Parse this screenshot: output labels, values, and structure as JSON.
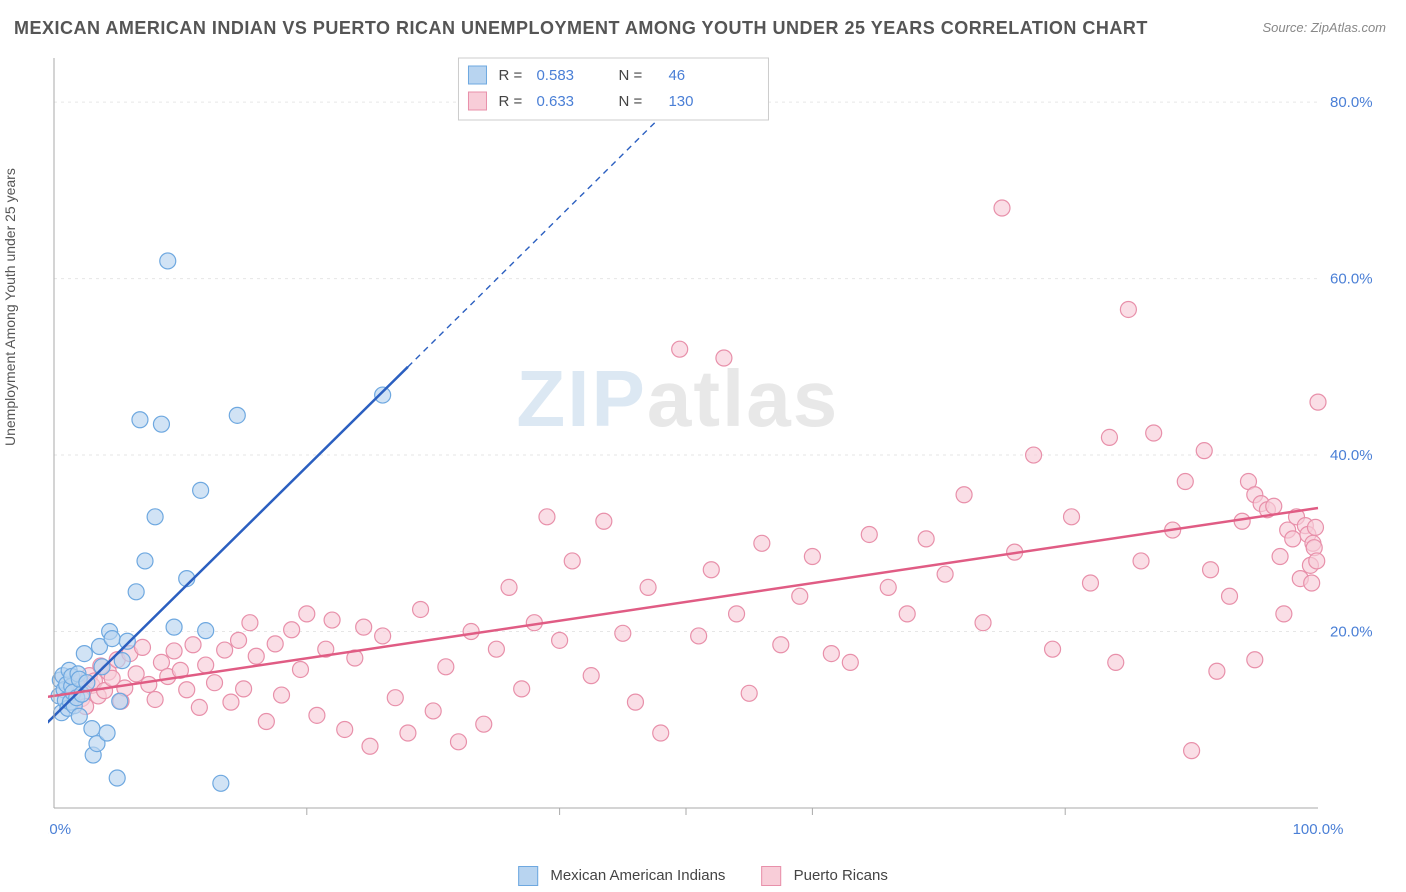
{
  "title": "MEXICAN AMERICAN INDIAN VS PUERTO RICAN UNEMPLOYMENT AMONG YOUTH UNDER 25 YEARS CORRELATION CHART",
  "source": "Source: ZipAtlas.com",
  "ylabel": "Unemployment Among Youth under 25 years",
  "watermark": {
    "zip": "ZIP",
    "atlas": "atlas"
  },
  "chart": {
    "type": "scatter",
    "background_color": "#ffffff",
    "grid_color": "#e6e6e6",
    "axis_color": "#aaaaaa",
    "tick_label_color": "#4a7fd6",
    "xlim": [
      0,
      100
    ],
    "ylim": [
      0,
      85
    ],
    "xtick_labels": [
      "0.0%",
      "100.0%"
    ],
    "xtick_positions": [
      0,
      100
    ],
    "x_minor_ticks": [
      20,
      40,
      50,
      60,
      80
    ],
    "ytick_labels": [
      "20.0%",
      "40.0%",
      "60.0%",
      "80.0%"
    ],
    "ytick_positions": [
      20,
      40,
      60,
      80
    ],
    "marker_radius": 8,
    "marker_stroke_width": 1.2,
    "trend_line_width": 2.5,
    "dashed_pattern": "6,5",
    "label_fontsize": 15,
    "title_fontsize": 18
  },
  "legend_box": {
    "rows": [
      {
        "swatch_fill": "#b8d4f0",
        "swatch_stroke": "#6ea8e0",
        "r_label": "R =",
        "r_val": "0.583",
        "n_label": "N =",
        "n_val": "46"
      },
      {
        "swatch_fill": "#f8cdd8",
        "swatch_stroke": "#e890aa",
        "r_label": "R =",
        "r_val": "0.633",
        "n_label": "N =",
        "n_val": "130"
      }
    ]
  },
  "bottom_legend": {
    "items": [
      {
        "label": "Mexican American Indians",
        "fill": "#b8d4f0",
        "stroke": "#6ea8e0"
      },
      {
        "label": "Puerto Ricans",
        "fill": "#f8cdd8",
        "stroke": "#e890aa"
      }
    ]
  },
  "series": [
    {
      "name": "Mexican American Indians",
      "color_fill": "#b8d4f0",
      "color_stroke": "#6ea8e0",
      "trend_color": "#2b5fc0",
      "trend": {
        "x1": -1,
        "y1": 9,
        "x2": 28,
        "y2": 50
      },
      "trend_dashed": {
        "x1": 28,
        "y1": 50,
        "x2": 52,
        "y2": 84
      },
      "points": [
        [
          0.4,
          12.7
        ],
        [
          0.5,
          14.5
        ],
        [
          0.6,
          10.8
        ],
        [
          0.7,
          15.0
        ],
        [
          0.8,
          13.4
        ],
        [
          0.9,
          12.2
        ],
        [
          1.0,
          14.0
        ],
        [
          1.1,
          11.3
        ],
        [
          1.2,
          15.6
        ],
        [
          1.3,
          12.0
        ],
        [
          1.4,
          13.8
        ],
        [
          1.4,
          14.9
        ],
        [
          1.5,
          13.1
        ],
        [
          1.6,
          11.6
        ],
        [
          1.8,
          12.5
        ],
        [
          1.9,
          15.2
        ],
        [
          2.0,
          10.4
        ],
        [
          2.0,
          14.6
        ],
        [
          2.2,
          12.9
        ],
        [
          2.4,
          17.5
        ],
        [
          2.6,
          14.2
        ],
        [
          3.0,
          9.0
        ],
        [
          3.1,
          6.0
        ],
        [
          3.4,
          7.3
        ],
        [
          3.6,
          18.3
        ],
        [
          3.8,
          16.0
        ],
        [
          4.2,
          8.5
        ],
        [
          4.4,
          20.0
        ],
        [
          4.6,
          19.2
        ],
        [
          5.0,
          3.4
        ],
        [
          5.2,
          12.1
        ],
        [
          5.4,
          16.7
        ],
        [
          5.8,
          18.9
        ],
        [
          6.5,
          24.5
        ],
        [
          6.8,
          44.0
        ],
        [
          7.2,
          28.0
        ],
        [
          8.0,
          33.0
        ],
        [
          8.5,
          43.5
        ],
        [
          9.0,
          62.0
        ],
        [
          9.5,
          20.5
        ],
        [
          10.5,
          26.0
        ],
        [
          11.6,
          36.0
        ],
        [
          12.0,
          20.1
        ],
        [
          13.2,
          2.8
        ],
        [
          14.5,
          44.5
        ],
        [
          26.0,
          46.8
        ]
      ]
    },
    {
      "name": "Puerto Ricans",
      "color_fill": "#f8cdd8",
      "color_stroke": "#e890aa",
      "trend_color": "#e05c84",
      "trend": {
        "x1": -1,
        "y1": 12.5,
        "x2": 100,
        "y2": 34.0
      },
      "trend_dashed": null,
      "points": [
        [
          1.5,
          13.0
        ],
        [
          1.8,
          14.2
        ],
        [
          2.0,
          13.8
        ],
        [
          2.2,
          12.4
        ],
        [
          2.5,
          11.5
        ],
        [
          2.8,
          15.0
        ],
        [
          3.0,
          13.9
        ],
        [
          3.2,
          14.4
        ],
        [
          3.5,
          12.7
        ],
        [
          3.7,
          16.1
        ],
        [
          4.0,
          13.3
        ],
        [
          4.3,
          15.4
        ],
        [
          4.6,
          14.7
        ],
        [
          5.0,
          16.8
        ],
        [
          5.3,
          12.1
        ],
        [
          5.6,
          13.6
        ],
        [
          6.0,
          17.5
        ],
        [
          6.5,
          15.2
        ],
        [
          7.0,
          18.2
        ],
        [
          7.5,
          14.0
        ],
        [
          8.0,
          12.3
        ],
        [
          8.5,
          16.5
        ],
        [
          9.0,
          14.9
        ],
        [
          9.5,
          17.8
        ],
        [
          10.0,
          15.6
        ],
        [
          10.5,
          13.4
        ],
        [
          11.0,
          18.5
        ],
        [
          11.5,
          11.4
        ],
        [
          12.0,
          16.2
        ],
        [
          12.7,
          14.2
        ],
        [
          13.5,
          17.9
        ],
        [
          14.0,
          12.0
        ],
        [
          14.6,
          19.0
        ],
        [
          15.0,
          13.5
        ],
        [
          15.5,
          21.0
        ],
        [
          16.0,
          17.2
        ],
        [
          16.8,
          9.8
        ],
        [
          17.5,
          18.6
        ],
        [
          18.0,
          12.8
        ],
        [
          18.8,
          20.2
        ],
        [
          19.5,
          15.7
        ],
        [
          20.0,
          22.0
        ],
        [
          20.8,
          10.5
        ],
        [
          21.5,
          18.0
        ],
        [
          22.0,
          21.3
        ],
        [
          23.0,
          8.9
        ],
        [
          23.8,
          17.0
        ],
        [
          24.5,
          20.5
        ],
        [
          25.0,
          7.0
        ],
        [
          26.0,
          19.5
        ],
        [
          27.0,
          12.5
        ],
        [
          28.0,
          8.5
        ],
        [
          29.0,
          22.5
        ],
        [
          30.0,
          11.0
        ],
        [
          31.0,
          16.0
        ],
        [
          32.0,
          7.5
        ],
        [
          33.0,
          20.0
        ],
        [
          34.0,
          9.5
        ],
        [
          35.0,
          18.0
        ],
        [
          36.0,
          25.0
        ],
        [
          37.0,
          13.5
        ],
        [
          38.0,
          21.0
        ],
        [
          39.0,
          33.0
        ],
        [
          40.0,
          19.0
        ],
        [
          41.0,
          28.0
        ],
        [
          42.5,
          15.0
        ],
        [
          43.5,
          32.5
        ],
        [
          45.0,
          19.8
        ],
        [
          46.0,
          12.0
        ],
        [
          47.0,
          25.0
        ],
        [
          48.0,
          8.5
        ],
        [
          49.5,
          52.0
        ],
        [
          51.0,
          19.5
        ],
        [
          52.0,
          27.0
        ],
        [
          53.0,
          51.0
        ],
        [
          54.0,
          22.0
        ],
        [
          55.0,
          13.0
        ],
        [
          56.0,
          30.0
        ],
        [
          57.5,
          18.5
        ],
        [
          59.0,
          24.0
        ],
        [
          60.0,
          28.5
        ],
        [
          61.5,
          17.5
        ],
        [
          63.0,
          16.5
        ],
        [
          64.5,
          31.0
        ],
        [
          66.0,
          25.0
        ],
        [
          67.5,
          22.0
        ],
        [
          69.0,
          30.5
        ],
        [
          70.5,
          26.5
        ],
        [
          72.0,
          35.5
        ],
        [
          73.5,
          21.0
        ],
        [
          75.0,
          68.0
        ],
        [
          76.0,
          29.0
        ],
        [
          77.5,
          40.0
        ],
        [
          79.0,
          18.0
        ],
        [
          80.5,
          33.0
        ],
        [
          82.0,
          25.5
        ],
        [
          83.5,
          42.0
        ],
        [
          84.0,
          16.5
        ],
        [
          85.0,
          56.5
        ],
        [
          86.0,
          28.0
        ],
        [
          87.0,
          42.5
        ],
        [
          88.5,
          31.5
        ],
        [
          89.5,
          37.0
        ],
        [
          90.0,
          6.5
        ],
        [
          91.0,
          40.5
        ],
        [
          92.0,
          15.5
        ],
        [
          93.0,
          24.0
        ],
        [
          94.0,
          32.5
        ],
        [
          94.5,
          37.0
        ],
        [
          95.0,
          35.5
        ],
        [
          95.5,
          34.5
        ],
        [
          96.0,
          33.8
        ],
        [
          96.5,
          34.2
        ],
        [
          97.0,
          28.5
        ],
        [
          97.3,
          22.0
        ],
        [
          97.6,
          31.5
        ],
        [
          98.0,
          30.5
        ],
        [
          98.3,
          33.0
        ],
        [
          98.6,
          26.0
        ],
        [
          99.0,
          32.0
        ],
        [
          99.2,
          31.0
        ],
        [
          99.4,
          27.5
        ],
        [
          99.5,
          25.5
        ],
        [
          99.6,
          30.0
        ],
        [
          99.7,
          29.5
        ],
        [
          99.8,
          31.8
        ],
        [
          99.9,
          28.0
        ],
        [
          100.0,
          46.0
        ],
        [
          95.0,
          16.8
        ],
        [
          91.5,
          27.0
        ]
      ]
    }
  ]
}
